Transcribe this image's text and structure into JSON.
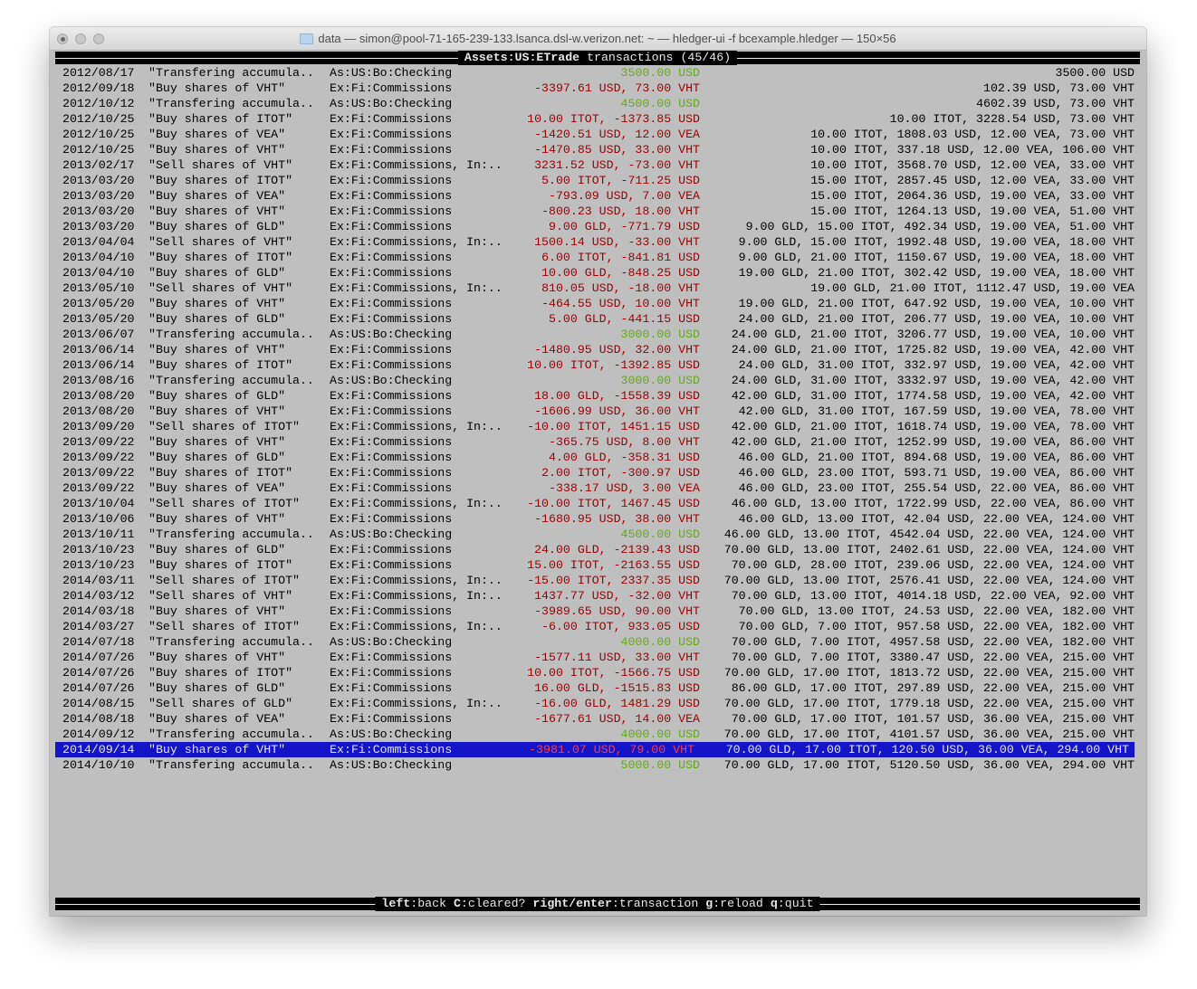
{
  "window": {
    "title": "data — simon@pool-71-165-239-133.lsanca.dsl-w.verizon.net: ~ — hledger-ui -f bcexample.hledger — 150×56"
  },
  "header": {
    "account": "Assets:US:ETrade",
    "label": " transactions (45/46)"
  },
  "colors": {
    "outflow": "#9c0000",
    "inflow": "#5fae10",
    "selection": "#1414c8",
    "terminal_bg": "#bfbfbf"
  },
  "selected_index": 44,
  "rows": [
    [
      "2012/08/17",
      "\"Transfering accumula..",
      "As:US:Bo:Checking",
      "3500.00 USD",
      "3500.00 USD",
      "in"
    ],
    [
      "2012/09/18",
      "\"Buy shares of VHT\"",
      "Ex:Fi:Commissions",
      "-3397.61 USD, 73.00 VHT",
      "102.39 USD, 73.00 VHT",
      "out"
    ],
    [
      "2012/10/12",
      "\"Transfering accumula..",
      "As:US:Bo:Checking",
      "4500.00 USD",
      "4602.39 USD, 73.00 VHT",
      "in"
    ],
    [
      "2012/10/25",
      "\"Buy shares of ITOT\"",
      "Ex:Fi:Commissions",
      "10.00 ITOT, -1373.85 USD",
      "10.00 ITOT, 3228.54 USD, 73.00 VHT",
      "out"
    ],
    [
      "2012/10/25",
      "\"Buy shares of VEA\"",
      "Ex:Fi:Commissions",
      "-1420.51 USD, 12.00 VEA",
      "10.00 ITOT, 1808.03 USD, 12.00 VEA, 73.00 VHT",
      "out"
    ],
    [
      "2012/10/25",
      "\"Buy shares of VHT\"",
      "Ex:Fi:Commissions",
      "-1470.85 USD, 33.00 VHT",
      "10.00 ITOT, 337.18 USD, 12.00 VEA, 106.00 VHT",
      "out"
    ],
    [
      "2013/02/17",
      "\"Sell shares of VHT\"",
      "Ex:Fi:Commissions, In:..",
      "3231.52 USD, -73.00 VHT",
      "10.00 ITOT, 3568.70 USD, 12.00 VEA, 33.00 VHT",
      "out"
    ],
    [
      "2013/03/20",
      "\"Buy shares of ITOT\"",
      "Ex:Fi:Commissions",
      "5.00 ITOT, -711.25 USD",
      "15.00 ITOT, 2857.45 USD, 12.00 VEA, 33.00 VHT",
      "out"
    ],
    [
      "2013/03/20",
      "\"Buy shares of VEA\"",
      "Ex:Fi:Commissions",
      "-793.09 USD, 7.00 VEA",
      "15.00 ITOT, 2064.36 USD, 19.00 VEA, 33.00 VHT",
      "out"
    ],
    [
      "2013/03/20",
      "\"Buy shares of VHT\"",
      "Ex:Fi:Commissions",
      "-800.23 USD, 18.00 VHT",
      "15.00 ITOT, 1264.13 USD, 19.00 VEA, 51.00 VHT",
      "out"
    ],
    [
      "2013/03/20",
      "\"Buy shares of GLD\"",
      "Ex:Fi:Commissions",
      "9.00 GLD, -771.79 USD",
      "9.00 GLD, 15.00 ITOT, 492.34 USD, 19.00 VEA, 51.00 VHT",
      "out"
    ],
    [
      "2013/04/04",
      "\"Sell shares of VHT\"",
      "Ex:Fi:Commissions, In:..",
      "1500.14 USD, -33.00 VHT",
      "9.00 GLD, 15.00 ITOT, 1992.48 USD, 19.00 VEA, 18.00 VHT",
      "out"
    ],
    [
      "2013/04/10",
      "\"Buy shares of ITOT\"",
      "Ex:Fi:Commissions",
      "6.00 ITOT, -841.81 USD",
      "9.00 GLD, 21.00 ITOT, 1150.67 USD, 19.00 VEA, 18.00 VHT",
      "out"
    ],
    [
      "2013/04/10",
      "\"Buy shares of GLD\"",
      "Ex:Fi:Commissions",
      "10.00 GLD, -848.25 USD",
      "19.00 GLD, 21.00 ITOT, 302.42 USD, 19.00 VEA, 18.00 VHT",
      "out"
    ],
    [
      "2013/05/10",
      "\"Sell shares of VHT\"",
      "Ex:Fi:Commissions, In:..",
      "810.05 USD, -18.00 VHT",
      "19.00 GLD, 21.00 ITOT, 1112.47 USD, 19.00 VEA",
      "out"
    ],
    [
      "2013/05/20",
      "\"Buy shares of VHT\"",
      "Ex:Fi:Commissions",
      "-464.55 USD, 10.00 VHT",
      "19.00 GLD, 21.00 ITOT, 647.92 USD, 19.00 VEA, 10.00 VHT",
      "out"
    ],
    [
      "2013/05/20",
      "\"Buy shares of GLD\"",
      "Ex:Fi:Commissions",
      "5.00 GLD, -441.15 USD",
      "24.00 GLD, 21.00 ITOT, 206.77 USD, 19.00 VEA, 10.00 VHT",
      "out"
    ],
    [
      "2013/06/07",
      "\"Transfering accumula..",
      "As:US:Bo:Checking",
      "3000.00 USD",
      "24.00 GLD, 21.00 ITOT, 3206.77 USD, 19.00 VEA, 10.00 VHT",
      "in"
    ],
    [
      "2013/06/14",
      "\"Buy shares of VHT\"",
      "Ex:Fi:Commissions",
      "-1480.95 USD, 32.00 VHT",
      "24.00 GLD, 21.00 ITOT, 1725.82 USD, 19.00 VEA, 42.00 VHT",
      "out"
    ],
    [
      "2013/06/14",
      "\"Buy shares of ITOT\"",
      "Ex:Fi:Commissions",
      "10.00 ITOT, -1392.85 USD",
      "24.00 GLD, 31.00 ITOT, 332.97 USD, 19.00 VEA, 42.00 VHT",
      "out"
    ],
    [
      "2013/08/16",
      "\"Transfering accumula..",
      "As:US:Bo:Checking",
      "3000.00 USD",
      "24.00 GLD, 31.00 ITOT, 3332.97 USD, 19.00 VEA, 42.00 VHT",
      "in"
    ],
    [
      "2013/08/20",
      "\"Buy shares of GLD\"",
      "Ex:Fi:Commissions",
      "18.00 GLD, -1558.39 USD",
      "42.00 GLD, 31.00 ITOT, 1774.58 USD, 19.00 VEA, 42.00 VHT",
      "out"
    ],
    [
      "2013/08/20",
      "\"Buy shares of VHT\"",
      "Ex:Fi:Commissions",
      "-1606.99 USD, 36.00 VHT",
      "42.00 GLD, 31.00 ITOT, 167.59 USD, 19.00 VEA, 78.00 VHT",
      "out"
    ],
    [
      "2013/09/20",
      "\"Sell shares of ITOT\"",
      "Ex:Fi:Commissions, In:..",
      "-10.00 ITOT, 1451.15 USD",
      "42.00 GLD, 21.00 ITOT, 1618.74 USD, 19.00 VEA, 78.00 VHT",
      "out"
    ],
    [
      "2013/09/22",
      "\"Buy shares of VHT\"",
      "Ex:Fi:Commissions",
      "-365.75 USD, 8.00 VHT",
      "42.00 GLD, 21.00 ITOT, 1252.99 USD, 19.00 VEA, 86.00 VHT",
      "out"
    ],
    [
      "2013/09/22",
      "\"Buy shares of GLD\"",
      "Ex:Fi:Commissions",
      "4.00 GLD, -358.31 USD",
      "46.00 GLD, 21.00 ITOT, 894.68 USD, 19.00 VEA, 86.00 VHT",
      "out"
    ],
    [
      "2013/09/22",
      "\"Buy shares of ITOT\"",
      "Ex:Fi:Commissions",
      "2.00 ITOT, -300.97 USD",
      "46.00 GLD, 23.00 ITOT, 593.71 USD, 19.00 VEA, 86.00 VHT",
      "out"
    ],
    [
      "2013/09/22",
      "\"Buy shares of VEA\"",
      "Ex:Fi:Commissions",
      "-338.17 USD, 3.00 VEA",
      "46.00 GLD, 23.00 ITOT, 255.54 USD, 22.00 VEA, 86.00 VHT",
      "out"
    ],
    [
      "2013/10/04",
      "\"Sell shares of ITOT\"",
      "Ex:Fi:Commissions, In:..",
      "-10.00 ITOT, 1467.45 USD",
      "46.00 GLD, 13.00 ITOT, 1722.99 USD, 22.00 VEA, 86.00 VHT",
      "out"
    ],
    [
      "2013/10/06",
      "\"Buy shares of VHT\"",
      "Ex:Fi:Commissions",
      "-1680.95 USD, 38.00 VHT",
      "46.00 GLD, 13.00 ITOT, 42.04 USD, 22.00 VEA, 124.00 VHT",
      "out"
    ],
    [
      "2013/10/11",
      "\"Transfering accumula..",
      "As:US:Bo:Checking",
      "4500.00 USD",
      "46.00 GLD, 13.00 ITOT, 4542.04 USD, 22.00 VEA, 124.00 VHT",
      "in"
    ],
    [
      "2013/10/23",
      "\"Buy shares of GLD\"",
      "Ex:Fi:Commissions",
      "24.00 GLD, -2139.43 USD",
      "70.00 GLD, 13.00 ITOT, 2402.61 USD, 22.00 VEA, 124.00 VHT",
      "out"
    ],
    [
      "2013/10/23",
      "\"Buy shares of ITOT\"",
      "Ex:Fi:Commissions",
      "15.00 ITOT, -2163.55 USD",
      "70.00 GLD, 28.00 ITOT, 239.06 USD, 22.00 VEA, 124.00 VHT",
      "out"
    ],
    [
      "2014/03/11",
      "\"Sell shares of ITOT\"",
      "Ex:Fi:Commissions, In:..",
      "-15.00 ITOT, 2337.35 USD",
      "70.00 GLD, 13.00 ITOT, 2576.41 USD, 22.00 VEA, 124.00 VHT",
      "out"
    ],
    [
      "2014/03/12",
      "\"Sell shares of VHT\"",
      "Ex:Fi:Commissions, In:..",
      "1437.77 USD, -32.00 VHT",
      "70.00 GLD, 13.00 ITOT, 4014.18 USD, 22.00 VEA, 92.00 VHT",
      "out"
    ],
    [
      "2014/03/18",
      "\"Buy shares of VHT\"",
      "Ex:Fi:Commissions",
      "-3989.65 USD, 90.00 VHT",
      "70.00 GLD, 13.00 ITOT, 24.53 USD, 22.00 VEA, 182.00 VHT",
      "out"
    ],
    [
      "2014/03/27",
      "\"Sell shares of ITOT\"",
      "Ex:Fi:Commissions, In:..",
      "-6.00 ITOT, 933.05 USD",
      "70.00 GLD, 7.00 ITOT, 957.58 USD, 22.00 VEA, 182.00 VHT",
      "out"
    ],
    [
      "2014/07/18",
      "\"Transfering accumula..",
      "As:US:Bo:Checking",
      "4000.00 USD",
      "70.00 GLD, 7.00 ITOT, 4957.58 USD, 22.00 VEA, 182.00 VHT",
      "in"
    ],
    [
      "2014/07/26",
      "\"Buy shares of VHT\"",
      "Ex:Fi:Commissions",
      "-1577.11 USD, 33.00 VHT",
      "70.00 GLD, 7.00 ITOT, 3380.47 USD, 22.00 VEA, 215.00 VHT",
      "out"
    ],
    [
      "2014/07/26",
      "\"Buy shares of ITOT\"",
      "Ex:Fi:Commissions",
      "10.00 ITOT, -1566.75 USD",
      "70.00 GLD, 17.00 ITOT, 1813.72 USD, 22.00 VEA, 215.00 VHT",
      "out"
    ],
    [
      "2014/07/26",
      "\"Buy shares of GLD\"",
      "Ex:Fi:Commissions",
      "16.00 GLD, -1515.83 USD",
      "86.00 GLD, 17.00 ITOT, 297.89 USD, 22.00 VEA, 215.00 VHT",
      "out"
    ],
    [
      "2014/08/15",
      "\"Sell shares of GLD\"",
      "Ex:Fi:Commissions, In:..",
      "-16.00 GLD, 1481.29 USD",
      "70.00 GLD, 17.00 ITOT, 1779.18 USD, 22.00 VEA, 215.00 VHT",
      "out"
    ],
    [
      "2014/08/18",
      "\"Buy shares of VEA\"",
      "Ex:Fi:Commissions",
      "-1677.61 USD, 14.00 VEA",
      "70.00 GLD, 17.00 ITOT, 101.57 USD, 36.00 VEA, 215.00 VHT",
      "out"
    ],
    [
      "2014/09/12",
      "\"Transfering accumula..",
      "As:US:Bo:Checking",
      "4000.00 USD",
      "70.00 GLD, 17.00 ITOT, 4101.57 USD, 36.00 VEA, 215.00 VHT",
      "in"
    ],
    [
      "2014/09/14",
      "\"Buy shares of VHT\"",
      "Ex:Fi:Commissions",
      "-3981.07 USD, 79.00 VHT",
      "70.00 GLD, 17.00 ITOT, 120.50 USD, 36.00 VEA, 294.00 VHT",
      "out"
    ],
    [
      "2014/10/10",
      "\"Transfering accumula..",
      "As:US:Bo:Checking",
      "5000.00 USD",
      "70.00 GLD, 17.00 ITOT, 5120.50 USD, 36.00 VEA, 294.00 VHT",
      "in"
    ]
  ],
  "footer": [
    {
      "key": "left",
      "action": ":back "
    },
    {
      "key": "C",
      "action": ":cleared? "
    },
    {
      "key": "right/enter",
      "action": ":transaction "
    },
    {
      "key": "g",
      "action": ":reload "
    },
    {
      "key": "q",
      "action": ":quit"
    }
  ]
}
